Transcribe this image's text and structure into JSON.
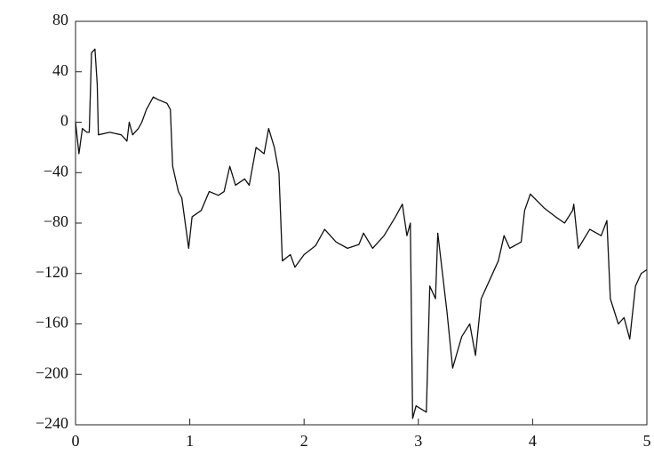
{
  "chart_data": {
    "type": "line",
    "x": [
      0,
      0.03,
      0.06,
      0.1,
      0.12,
      0.14,
      0.17,
      0.19,
      0.2,
      0.3,
      0.4,
      0.45,
      0.47,
      0.5,
      0.55,
      0.58,
      0.62,
      0.68,
      0.72,
      0.8,
      0.83,
      0.85,
      0.9,
      0.93,
      0.96,
      0.99,
      1.02,
      1.1,
      1.17,
      1.25,
      1.3,
      1.35,
      1.4,
      1.48,
      1.52,
      1.58,
      1.65,
      1.69,
      1.74,
      1.78,
      1.81,
      1.88,
      1.92,
      2.0,
      2.1,
      2.18,
      2.28,
      2.38,
      2.48,
      2.52,
      2.6,
      2.7,
      2.8,
      2.86,
      2.9,
      2.93,
      2.95,
      2.98,
      3.07,
      3.1,
      3.15,
      3.17,
      3.25,
      3.3,
      3.38,
      3.45,
      3.5,
      3.55,
      3.6,
      3.7,
      3.75,
      3.8,
      3.9,
      3.93,
      3.98,
      4.1,
      4.2,
      4.28,
      4.35,
      4.36,
      4.4,
      4.5,
      4.6,
      4.65,
      4.68,
      4.75,
      4.8,
      4.85,
      4.9,
      4.95,
      5
    ],
    "values": [
      0,
      -25,
      -5,
      -8,
      -8,
      55,
      58,
      30,
      -10,
      -8,
      -10,
      -15,
      0,
      -10,
      -5,
      0,
      10,
      20,
      18,
      15,
      10,
      -35,
      -55,
      -60,
      -80,
      -100,
      -75,
      -70,
      -55,
      -58,
      -55,
      -35,
      -50,
      -45,
      -50,
      -20,
      -25,
      -5,
      -20,
      -40,
      -110,
      -105,
      -115,
      -105,
      -98,
      -85,
      -95,
      -100,
      -97,
      -88,
      -100,
      -90,
      -75,
      -65,
      -90,
      -80,
      -235,
      -225,
      -230,
      -130,
      -140,
      -88,
      -150,
      -195,
      -170,
      -160,
      -185,
      -140,
      -130,
      -110,
      -90,
      -100,
      -95,
      -70,
      -57,
      -68,
      -75,
      -80,
      -70,
      -65,
      -100,
      -85,
      -90,
      -78,
      -140,
      -160,
      -155,
      -172,
      -130,
      -120,
      -117
    ],
    "color": "#111111",
    "xlim": [
      0,
      5
    ],
    "xticks": [
      0,
      1,
      2,
      3,
      4,
      5
    ],
    "ylim": [
      -240,
      80
    ],
    "yticks": [
      {
        "value": -240,
        "label": "−240"
      },
      {
        "value": -200,
        "label": "−200"
      },
      {
        "value": -160,
        "label": "−160"
      },
      {
        "value": -120,
        "label": "−120"
      },
      {
        "value": -80,
        "label": "−80"
      },
      {
        "value": -40,
        "label": "−40"
      },
      0,
      40,
      80
    ],
    "grid": false
  }
}
